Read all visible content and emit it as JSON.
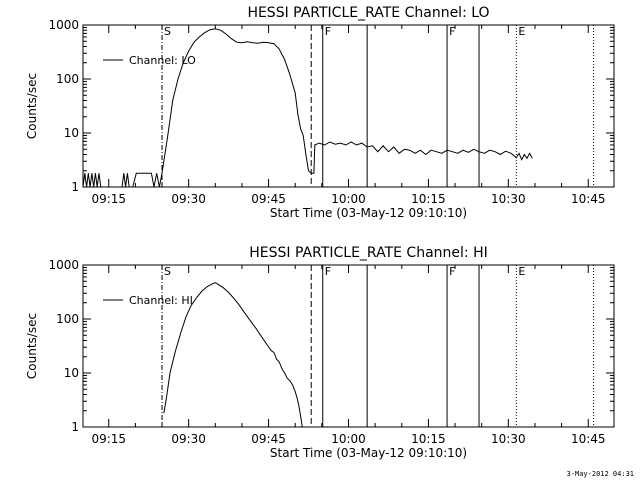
{
  "chart_data": [
    {
      "type": "line",
      "title": "HESSI PARTICLE_RATE Channel: LO",
      "xlabel": "Start Time (03-May-12 09:10:10)",
      "ylabel": "Counts/sec",
      "yscale": "log",
      "ylim": [
        1,
        1000
      ],
      "xlim": [
        "09:10:10",
        "10:49:50"
      ],
      "xticks": [
        "09:15",
        "09:30",
        "09:45",
        "10:00",
        "10:15",
        "10:30",
        "10:45"
      ],
      "yticks": [
        "1",
        "10",
        "100",
        "1000"
      ],
      "legend": {
        "label": "Channel: LO",
        "placement": "top-left"
      },
      "markers": [
        {
          "label": "S",
          "time": "09:25:00",
          "style": "dash-dot"
        },
        {
          "label": "",
          "time": "09:53:00",
          "style": "dashed"
        },
        {
          "label": "F",
          "time": "09:55:10",
          "style": "solid"
        },
        {
          "label": "",
          "time": "10:03:30",
          "style": "solid"
        },
        {
          "label": "F",
          "time": "10:18:30",
          "style": "solid"
        },
        {
          "label": "",
          "time": "10:24:30",
          "style": "solid"
        },
        {
          "label": "E",
          "time": "10:31:30",
          "style": "dotted"
        },
        {
          "label": "",
          "time": "10:46:00",
          "style": "dotted"
        }
      ],
      "series": [
        {
          "points": [
            [
              "09:10:10",
              1.0
            ],
            [
              "09:10:30",
              1.8
            ],
            [
              "09:10:50",
              1.0
            ],
            [
              "09:11:10",
              1.8
            ],
            [
              "09:11:30",
              1.0
            ],
            [
              "09:11:50",
              1.8
            ],
            [
              "09:12:10",
              1.0
            ],
            [
              "09:12:30",
              1.8
            ],
            [
              "09:12:50",
              1.0
            ],
            [
              "09:13:10",
              1.8
            ],
            [
              "09:13:30",
              1.0
            ],
            [
              "09:14:30",
              1.0
            ],
            [
              "09:15:30",
              1.0
            ],
            [
              "09:16:30",
              1.0
            ],
            [
              "09:17:30",
              1.0
            ],
            [
              "09:17:50",
              1.8
            ],
            [
              "09:18:10",
              1.0
            ],
            [
              "09:18:30",
              1.8
            ],
            [
              "09:18:50",
              1.0
            ],
            [
              "09:19:30",
              1.0
            ],
            [
              "09:20:10",
              1.8
            ],
            [
              "09:21:00",
              1.8
            ],
            [
              "09:22:00",
              1.8
            ],
            [
              "09:23:00",
              1.8
            ],
            [
              "09:23:30",
              1.0
            ],
            [
              "09:24:00",
              1.8
            ],
            [
              "09:24:30",
              1.0
            ],
            [
              "09:25:00",
              1.8
            ],
            [
              "09:25:20",
              3.0
            ],
            [
              "09:26:00",
              8
            ],
            [
              "09:27:00",
              40
            ],
            [
              "09:28:00",
              100
            ],
            [
              "09:29:00",
              200
            ],
            [
              "09:30:00",
              330
            ],
            [
              "09:31:00",
              480
            ],
            [
              "09:32:00",
              600
            ],
            [
              "09:33:00",
              720
            ],
            [
              "09:34:00",
              820
            ],
            [
              "09:35:00",
              850
            ],
            [
              "09:36:00",
              800
            ],
            [
              "09:37:00",
              680
            ],
            [
              "09:38:00",
              560
            ],
            [
              "09:39:00",
              480
            ],
            [
              "09:40:00",
              470
            ],
            [
              "09:41:00",
              490
            ],
            [
              "09:42:00",
              470
            ],
            [
              "09:43:00",
              460
            ],
            [
              "09:44:00",
              480
            ],
            [
              "09:45:00",
              470
            ],
            [
              "09:46:00",
              450
            ],
            [
              "09:47:00",
              360
            ],
            [
              "09:48:00",
              230
            ],
            [
              "09:49:00",
              120
            ],
            [
              "09:50:00",
              55
            ],
            [
              "09:50:30",
              22
            ],
            [
              "09:51:00",
              12
            ],
            [
              "09:51:30",
              9
            ],
            [
              "09:52:00",
              4
            ],
            [
              "09:52:30",
              2.0
            ],
            [
              "09:53:00",
              1.8
            ],
            [
              "09:53:30",
              1.8
            ],
            [
              "09:53:40",
              6.0
            ],
            [
              "09:54:30",
              6.5
            ],
            [
              "09:55:30",
              6.0
            ],
            [
              "09:56:30",
              6.8
            ],
            [
              "09:57:30",
              6.2
            ],
            [
              "09:58:30",
              6.5
            ],
            [
              "09:59:30",
              6.0
            ],
            [
              "10:00:30",
              6.8
            ],
            [
              "10:01:30",
              6.0
            ],
            [
              "10:02:30",
              6.5
            ],
            [
              "10:03:30",
              5.5
            ],
            [
              "10:04:30",
              5.8
            ],
            [
              "10:05:30",
              4.5
            ],
            [
              "10:06:30",
              5.8
            ],
            [
              "10:07:30",
              4.5
            ],
            [
              "10:08:30",
              5.5
            ],
            [
              "10:09:30",
              4.2
            ],
            [
              "10:10:30",
              5.0
            ],
            [
              "10:11:30",
              4.8
            ],
            [
              "10:12:30",
              4.2
            ],
            [
              "10:13:30",
              4.8
            ],
            [
              "10:14:30",
              4.0
            ],
            [
              "10:15:30",
              4.8
            ],
            [
              "10:16:30",
              4.5
            ],
            [
              "10:17:30",
              4.2
            ],
            [
              "10:18:30",
              4.8
            ],
            [
              "10:19:30",
              4.5
            ],
            [
              "10:20:30",
              4.2
            ],
            [
              "10:21:30",
              4.8
            ],
            [
              "10:22:30",
              4.4
            ],
            [
              "10:23:30",
              5.0
            ],
            [
              "10:24:30",
              4.5
            ],
            [
              "10:25:30",
              4.2
            ],
            [
              "10:26:30",
              4.8
            ],
            [
              "10:27:30",
              4.5
            ],
            [
              "10:28:30",
              4.0
            ],
            [
              "10:29:30",
              4.6
            ],
            [
              "10:30:30",
              4.2
            ],
            [
              "10:31:30",
              3.5
            ],
            [
              "10:32:00",
              4.2
            ],
            [
              "10:32:30",
              3.2
            ],
            [
              "10:33:00",
              4.0
            ],
            [
              "10:33:30",
              3.4
            ],
            [
              "10:34:00",
              4.2
            ],
            [
              "10:34:30",
              3.4
            ]
          ]
        }
      ]
    },
    {
      "type": "line",
      "title": "HESSI PARTICLE_RATE Channel: HI",
      "xlabel": "Start Time (03-May-12 09:10:10)",
      "ylabel": "Counts/sec",
      "yscale": "log",
      "ylim": [
        1,
        1000
      ],
      "xlim": [
        "09:10:10",
        "10:49:50"
      ],
      "xticks": [
        "09:15",
        "09:30",
        "09:45",
        "10:00",
        "10:15",
        "10:30",
        "10:45"
      ],
      "yticks": [
        "1",
        "10",
        "100",
        "1000"
      ],
      "legend": {
        "label": "Channel: HI",
        "placement": "top-left"
      },
      "markers": [
        {
          "label": "S",
          "time": "09:25:00",
          "style": "dash-dot"
        },
        {
          "label": "",
          "time": "09:53:00",
          "style": "dashed"
        },
        {
          "label": "F",
          "time": "09:55:10",
          "style": "solid"
        },
        {
          "label": "",
          "time": "10:03:30",
          "style": "solid"
        },
        {
          "label": "F",
          "time": "10:18:30",
          "style": "solid"
        },
        {
          "label": "",
          "time": "10:24:30",
          "style": "solid"
        },
        {
          "label": "E",
          "time": "10:31:30",
          "style": "dotted"
        },
        {
          "label": "",
          "time": "10:46:00",
          "style": "dotted"
        }
      ],
      "series": [
        {
          "points": [
            [
              "09:25:20",
              1.8
            ],
            [
              "09:25:50",
              3.5
            ],
            [
              "09:26:30",
              10
            ],
            [
              "09:27:30",
              25
            ],
            [
              "09:28:30",
              55
            ],
            [
              "09:29:30",
              110
            ],
            [
              "09:30:30",
              180
            ],
            [
              "09:31:30",
              250
            ],
            [
              "09:32:30",
              330
            ],
            [
              "09:33:30",
              400
            ],
            [
              "09:34:30",
              450
            ],
            [
              "09:35:00",
              470
            ],
            [
              "09:35:30",
              440
            ],
            [
              "09:36:30",
              380
            ],
            [
              "09:37:30",
              310
            ],
            [
              "09:38:30",
              240
            ],
            [
              "09:39:30",
              180
            ],
            [
              "09:40:30",
              130
            ],
            [
              "09:41:30",
              95
            ],
            [
              "09:42:30",
              70
            ],
            [
              "09:43:30",
              50
            ],
            [
              "09:44:30",
              36
            ],
            [
              "09:45:30",
              26
            ],
            [
              "09:46:00",
              24
            ],
            [
              "09:46:30",
              18
            ],
            [
              "09:47:00",
              16
            ],
            [
              "09:47:30",
              12
            ],
            [
              "09:48:00",
              10
            ],
            [
              "09:48:30",
              8
            ],
            [
              "09:49:00",
              7.2
            ],
            [
              "09:49:30",
              6.0
            ],
            [
              "09:50:00",
              4.5
            ],
            [
              "09:50:20",
              3.5
            ],
            [
              "09:50:40",
              2.5
            ],
            [
              "09:51:00",
              1.6
            ],
            [
              "09:51:20",
              1.0
            ]
          ]
        }
      ]
    }
  ],
  "footer": {
    "timestamp": "3-May-2012 04:31"
  }
}
